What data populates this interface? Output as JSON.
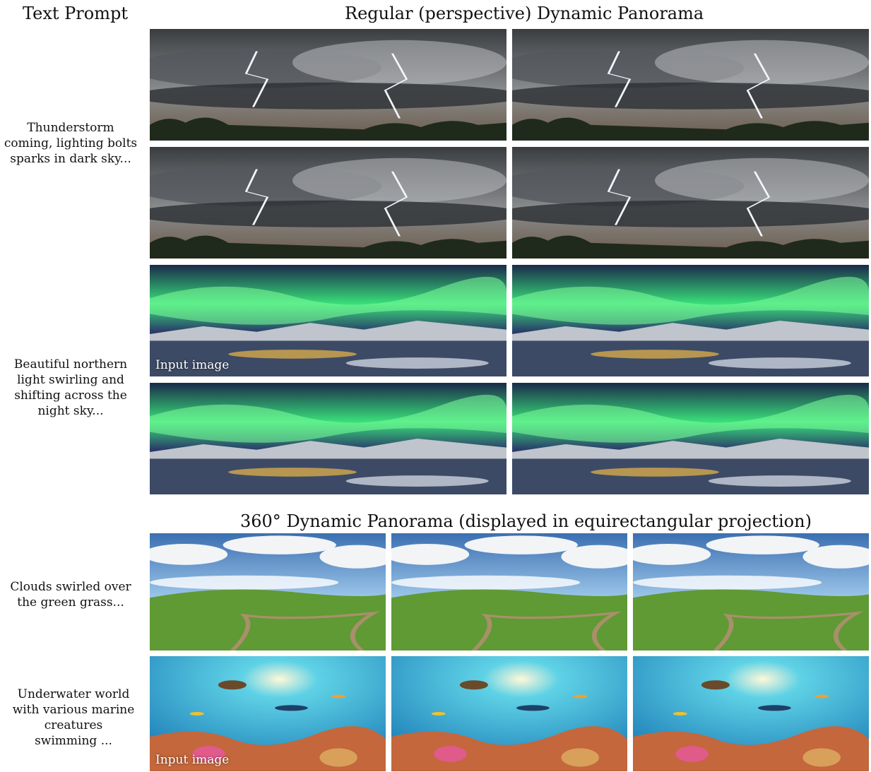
{
  "headers": {
    "text_prompt": "Text Prompt",
    "regular": "Regular (perspective) Dynamic Panorama",
    "panorama360": "360° Dynamic Panorama (displayed in equirectangular projection)"
  },
  "prompts": [
    [
      "Thunderstorm",
      "coming, lighting bolts",
      "sparks in dark sky..."
    ],
    [
      "Beautiful northern",
      "light swirling and",
      "shifting across the",
      "night sky..."
    ],
    [
      "Clouds swirled over",
      "the green grass..."
    ],
    [
      "Underwater world",
      "with various marine",
      "creatures",
      "swimming ..."
    ]
  ],
  "input_image_label": "Input image",
  "scene_colors": {
    "storm": [
      "#3a3d40",
      "#8a8c8e",
      "#1f2a1c"
    ],
    "aurora": [
      "#1a2a4a",
      "#39e07a",
      "#c0c4cc"
    ],
    "grass": [
      "#3b6fb0",
      "#f2f4f6",
      "#5f9a34"
    ],
    "ocean": [
      "#1e7fb8",
      "#5fd2e6",
      "#c4673c"
    ]
  }
}
